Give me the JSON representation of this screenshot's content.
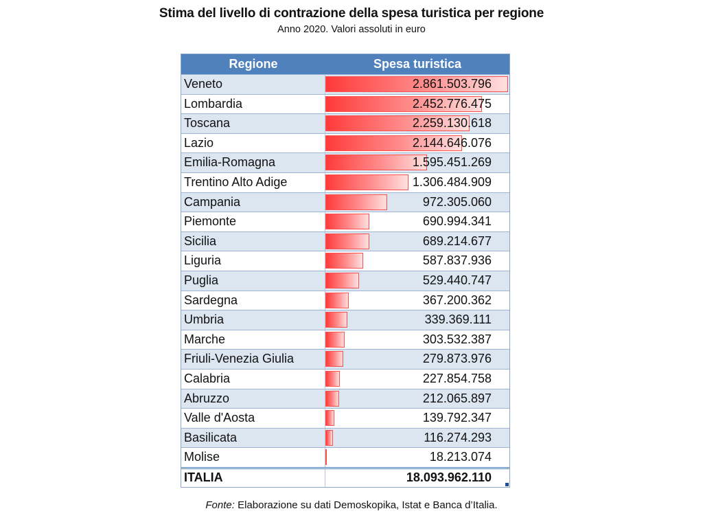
{
  "title": "Stima del livello di contrazione della spesa turistica per regione",
  "subtitle": "Anno 2020. Valori assoluti in euro",
  "source_label": "Fonte:",
  "source_text": " Elaborazione su dati Demoskopika, Istat e Banca d’Italia.",
  "colors": {
    "header": "#4f81bd",
    "alt_row": "#dce6f1",
    "bar": "#ff3a3a"
  },
  "chart_data": {
    "type": "bar",
    "columns": [
      "Regione",
      "Spesa turistica"
    ],
    "categories": [
      "Veneto",
      "Lombardia",
      "Toscana",
      "Lazio",
      "Emilia-Romagna",
      "Trentino Alto Adige",
      "Campania",
      "Piemonte",
      "Sicilia",
      "Liguria",
      "Puglia",
      "Sardegna",
      "Umbria",
      "Marche",
      "Friuli-Venezia Giulia",
      "Calabria",
      "Abruzzo",
      "Valle d'Aosta",
      "Basilicata",
      "Molise"
    ],
    "values": [
      2861503796,
      2452776475,
      2259130618,
      2144646076,
      1595451269,
      1306484909,
      972305060,
      690994341,
      689214677,
      587837936,
      529440747,
      367200362,
      339369111,
      303532387,
      279873976,
      227854758,
      212065897,
      139792347,
      116274293,
      18213074
    ],
    "value_labels": [
      "2.861.503.796",
      "2.452.776.475",
      "2.259.130.618",
      "2.144.646.076",
      "1.595.451.269",
      "1.306.484.909",
      "972.305.060",
      "690.994.341",
      "689.214.677",
      "587.837.936",
      "529.440.747",
      "367.200.362",
      "339.369.111",
      "303.532.387",
      "279.873.976",
      "227.854.758",
      "212.065.897",
      "139.792.347",
      "116.274.293",
      "18.213.074"
    ],
    "total_label": "ITALIA",
    "total_value": "18.093.962.110"
  }
}
